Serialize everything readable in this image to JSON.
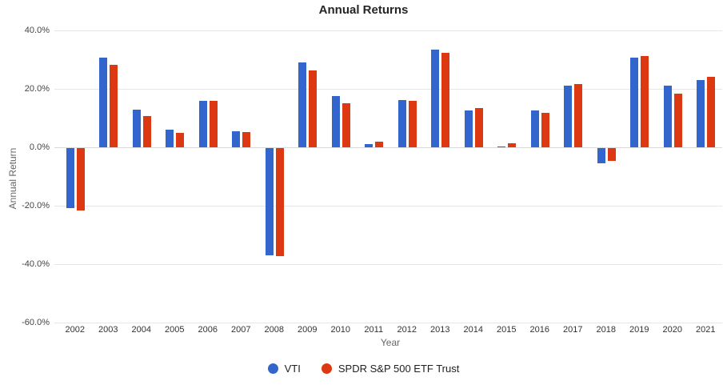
{
  "chart_data": {
    "type": "bar",
    "title": "Annual Returns",
    "xlabel": "Year",
    "ylabel": "Annual Return",
    "ylim": [
      -60,
      40
    ],
    "ytick_step": 20,
    "ytick_suffix": "%",
    "grid": true,
    "legend_position": "bottom",
    "categories": [
      "2002",
      "2003",
      "2004",
      "2005",
      "2006",
      "2007",
      "2008",
      "2009",
      "2010",
      "2011",
      "2012",
      "2013",
      "2014",
      "2015",
      "2016",
      "2017",
      "2018",
      "2019",
      "2020",
      "2021"
    ],
    "series": [
      {
        "name": "VTI",
        "color": "#3366cc",
        "values": [
          -20.5,
          30.8,
          12.8,
          6.1,
          15.8,
          5.4,
          -36.8,
          29.0,
          17.4,
          1.0,
          16.2,
          33.4,
          12.5,
          0.4,
          12.7,
          21.2,
          -5.1,
          30.6,
          21.1,
          23.0
        ]
      },
      {
        "name": "SPDR S&P 500 ETF Trust",
        "color": "#dc3912",
        "values": [
          -21.5,
          28.3,
          10.7,
          4.9,
          15.9,
          5.1,
          -37.0,
          26.3,
          15.0,
          1.9,
          16.0,
          32.2,
          13.4,
          1.3,
          11.8,
          21.6,
          -4.4,
          31.1,
          18.4,
          24.0
        ]
      }
    ]
  }
}
